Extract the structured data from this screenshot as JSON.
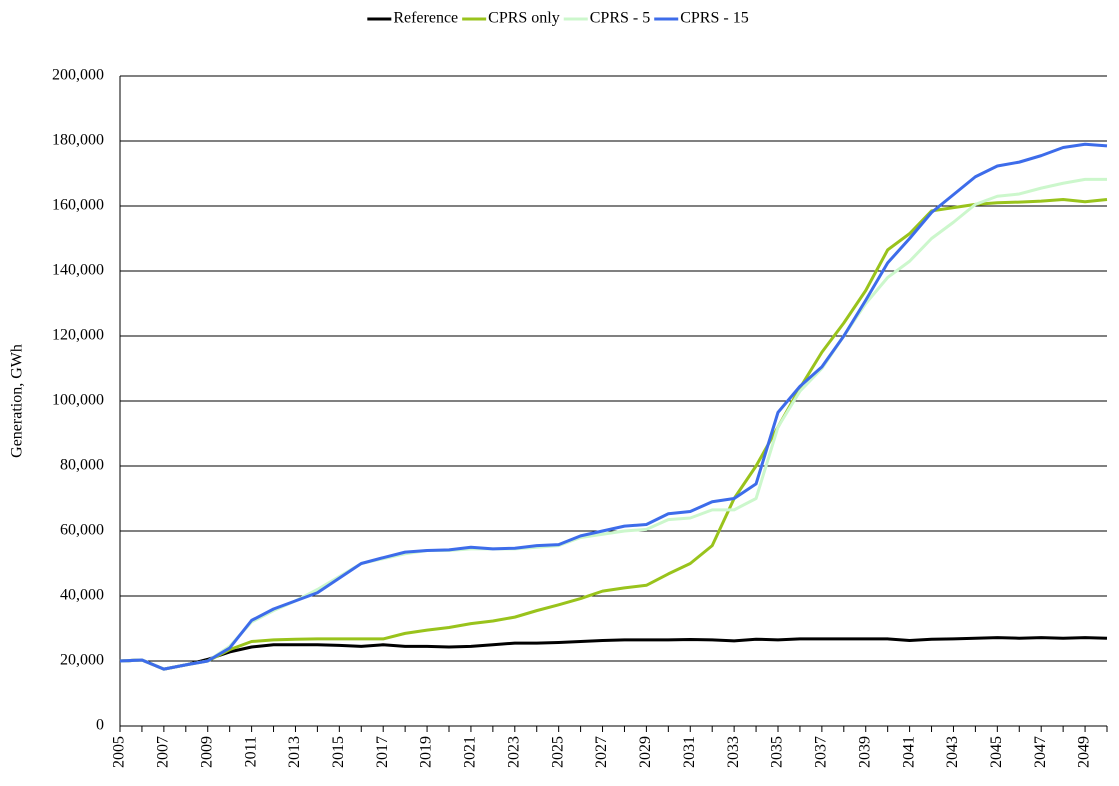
{
  "chart_data": {
    "type": "line",
    "y_label": "Generation, GWh",
    "categories": [
      "2005",
      null,
      "2007",
      null,
      "2009",
      null,
      "2011",
      null,
      "2013",
      null,
      "2015",
      null,
      "2017",
      null,
      "2019",
      null,
      "2021",
      null,
      "2023",
      null,
      "2025",
      null,
      "2027",
      null,
      "2029",
      null,
      "2031",
      null,
      "2033",
      null,
      "2035",
      null,
      "2037",
      null,
      "2039",
      null,
      "2041",
      null,
      "2043",
      null,
      "2045",
      null,
      "2047",
      null,
      "2049",
      null
    ],
    "series": [
      {
        "name": "Reference",
        "color": "#000000",
        "values": [
          20000,
          20300,
          17500,
          18800,
          20500,
          22800,
          24300,
          25000,
          25000,
          25000,
          24800,
          24500,
          25000,
          24500,
          24500,
          24300,
          24500,
          25000,
          25500,
          25500,
          25700,
          26000,
          26300,
          26500,
          26500,
          26500,
          26600,
          26500,
          26200,
          26700,
          26500,
          26800,
          26800,
          26800,
          26800,
          26800,
          26300,
          26700,
          26800,
          27000,
          27200,
          27000,
          27200,
          27000,
          27200,
          27000
        ]
      },
      {
        "name": "CPRS only",
        "color": "#99c31c",
        "values": [
          20000,
          20300,
          17500,
          18800,
          20000,
          23500,
          26000,
          26500,
          26700,
          26800,
          26800,
          26800,
          26800,
          28500,
          29500,
          30300,
          31500,
          32300,
          33500,
          35500,
          37300,
          39200,
          41500,
          42500,
          43300,
          46800,
          50000,
          55500,
          70000,
          80000,
          92000,
          104000,
          115000,
          124000,
          134000,
          146500,
          151500,
          158500,
          159500,
          160500,
          161000,
          161200,
          161500,
          162000,
          161300,
          162000
        ]
      },
      {
        "name": "CPRS - 5",
        "color": "#ccf7cc",
        "values": [
          20000,
          20300,
          17500,
          18800,
          20000,
          24500,
          32000,
          35500,
          38500,
          42000,
          46000,
          50000,
          51500,
          53000,
          54000,
          54000,
          54500,
          54500,
          54500,
          55000,
          55500,
          58000,
          59000,
          60000,
          60500,
          63500,
          64000,
          66500,
          66500,
          70000,
          92000,
          103000,
          110000,
          120000,
          130000,
          138000,
          143000,
          150000,
          155000,
          160500,
          163000,
          163700,
          165500,
          167000,
          168200,
          168200
        ]
      },
      {
        "name": "CPRS - 15",
        "color": "#3d6cea",
        "values": [
          20000,
          20300,
          17500,
          18800,
          20000,
          24000,
          32500,
          36000,
          38500,
          41000,
          45500,
          50000,
          51800,
          53500,
          54000,
          54200,
          55000,
          54500,
          54700,
          55500,
          55800,
          58500,
          60000,
          61500,
          62000,
          65300,
          66000,
          69000,
          70000,
          74500,
          96500,
          104500,
          110500,
          120000,
          131000,
          142500,
          150000,
          158000,
          163500,
          169000,
          172300,
          173500,
          175500,
          178000,
          179000,
          178500
        ]
      }
    ],
    "ylim": [
      0,
      200000
    ],
    "yticks": [
      0,
      {
        "value": 20000,
        "label": "20,000"
      },
      {
        "value": 40000,
        "label": "40,000"
      },
      {
        "value": 60000,
        "label": "60,000"
      },
      {
        "value": 80000,
        "label": "80,000"
      },
      {
        "value": 100000,
        "label": "100,000"
      },
      {
        "value": 120000,
        "label": "120,000"
      },
      {
        "value": 140000,
        "label": "140,000"
      },
      {
        "value": 160000,
        "label": "160,000"
      },
      {
        "value": 180000,
        "label": "180,000"
      },
      {
        "value": 200000,
        "label": "200,000"
      }
    ],
    "grid": true,
    "legend": "top"
  }
}
